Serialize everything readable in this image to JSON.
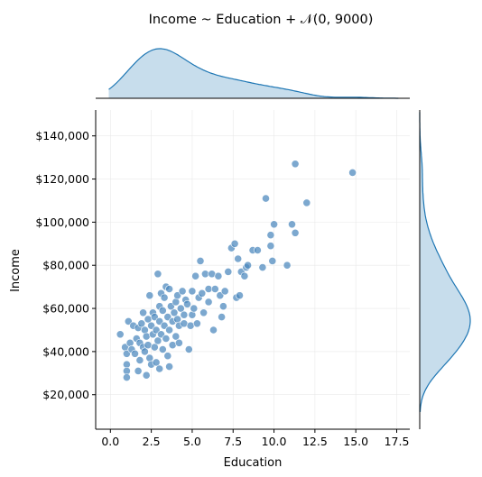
{
  "chart_data": {
    "type": "scatter",
    "title": "Income ~ Education + 𝒩(0, 9000)",
    "xlabel": "Education",
    "ylabel": "Income",
    "xlim": [
      -0.9,
      18.3
    ],
    "ylim": [
      4000,
      152000
    ],
    "xticks": [
      0,
      2.5,
      5,
      7.5,
      10,
      12.5,
      15,
      17.5
    ],
    "xtick_labels": [
      "0.0",
      "2.5",
      "5.0",
      "7.5",
      "10.0",
      "12.5",
      "15.0",
      "17.5"
    ],
    "yticks": [
      20000,
      40000,
      60000,
      80000,
      100000,
      120000,
      140000
    ],
    "ytick_labels": [
      "$20,000",
      "$40,000",
      "$60,000",
      "$80,000",
      "$100,000",
      "$120,000",
      "$140,000"
    ],
    "grid": true,
    "marginals": {
      "x": "kde",
      "y": "kde"
    },
    "colors": {
      "point": "#4a86bd",
      "line": "#1f77b4",
      "fill": "#1f77b4"
    },
    "points": [
      [
        0.6,
        48000
      ],
      [
        0.9,
        42000
      ],
      [
        1.0,
        39000
      ],
      [
        1.0,
        34000
      ],
      [
        1.0,
        31000
      ],
      [
        1.0,
        28000
      ],
      [
        1.1,
        54000
      ],
      [
        1.2,
        44000
      ],
      [
        1.3,
        41000
      ],
      [
        1.4,
        52000
      ],
      [
        1.5,
        39000
      ],
      [
        1.6,
        46000
      ],
      [
        1.7,
        51000
      ],
      [
        1.7,
        31000
      ],
      [
        1.8,
        36000
      ],
      [
        1.8,
        44000
      ],
      [
        1.9,
        53000
      ],
      [
        2.0,
        58000
      ],
      [
        2.0,
        42000
      ],
      [
        2.1,
        50000
      ],
      [
        2.1,
        40000
      ],
      [
        2.2,
        47000
      ],
      [
        2.2,
        29000
      ],
      [
        2.3,
        55000
      ],
      [
        2.3,
        43000
      ],
      [
        2.4,
        37000
      ],
      [
        2.4,
        66000
      ],
      [
        2.5,
        52000
      ],
      [
        2.5,
        34000
      ],
      [
        2.6,
        58000
      ],
      [
        2.6,
        48000
      ],
      [
        2.7,
        42000
      ],
      [
        2.7,
        56000
      ],
      [
        2.8,
        50000
      ],
      [
        2.8,
        35000
      ],
      [
        2.9,
        76000
      ],
      [
        2.9,
        45000
      ],
      [
        3.0,
        61000
      ],
      [
        3.0,
        54000
      ],
      [
        3.0,
        32000
      ],
      [
        3.1,
        67000
      ],
      [
        3.1,
        48000
      ],
      [
        3.2,
        59000
      ],
      [
        3.2,
        41000
      ],
      [
        3.3,
        65000
      ],
      [
        3.3,
        52000
      ],
      [
        3.4,
        70000
      ],
      [
        3.4,
        46000
      ],
      [
        3.5,
        56000
      ],
      [
        3.5,
        38000
      ],
      [
        3.6,
        69000
      ],
      [
        3.6,
        50000
      ],
      [
        3.6,
        33000
      ],
      [
        3.7,
        61000
      ],
      [
        3.8,
        54000
      ],
      [
        3.8,
        43000
      ],
      [
        3.9,
        58000
      ],
      [
        4.0,
        63000
      ],
      [
        4.0,
        47000
      ],
      [
        4.1,
        66000
      ],
      [
        4.1,
        55000
      ],
      [
        4.2,
        52000
      ],
      [
        4.2,
        44000
      ],
      [
        4.3,
        60000
      ],
      [
        4.4,
        68000
      ],
      [
        4.5,
        57000
      ],
      [
        4.5,
        53000
      ],
      [
        4.6,
        64000
      ],
      [
        4.7,
        62000
      ],
      [
        4.8,
        41000
      ],
      [
        4.9,
        52000
      ],
      [
        5.0,
        68000
      ],
      [
        5.0,
        57000
      ],
      [
        5.1,
        60000
      ],
      [
        5.2,
        75000
      ],
      [
        5.3,
        53000
      ],
      [
        5.4,
        65000
      ],
      [
        5.5,
        82000
      ],
      [
        5.6,
        67000
      ],
      [
        5.7,
        58000
      ],
      [
        5.8,
        76000
      ],
      [
        6.0,
        69000
      ],
      [
        6.0,
        63000
      ],
      [
        6.2,
        76000
      ],
      [
        6.3,
        50000
      ],
      [
        6.4,
        69000
      ],
      [
        6.6,
        75000
      ],
      [
        6.7,
        66000
      ],
      [
        6.8,
        56000
      ],
      [
        6.9,
        61000
      ],
      [
        7.0,
        68000
      ],
      [
        7.2,
        77000
      ],
      [
        7.4,
        88000
      ],
      [
        7.6,
        90000
      ],
      [
        7.7,
        65000
      ],
      [
        7.8,
        83000
      ],
      [
        7.9,
        66000
      ],
      [
        8.0,
        77000
      ],
      [
        8.2,
        75000
      ],
      [
        8.3,
        79000
      ],
      [
        8.4,
        80000
      ],
      [
        8.7,
        87000
      ],
      [
        9.0,
        87000
      ],
      [
        9.3,
        79000
      ],
      [
        9.5,
        111000
      ],
      [
        9.8,
        94000
      ],
      [
        9.8,
        89000
      ],
      [
        9.9,
        82000
      ],
      [
        10.0,
        99000
      ],
      [
        10.8,
        80000
      ],
      [
        11.1,
        99000
      ],
      [
        11.3,
        127000
      ],
      [
        11.3,
        95000
      ],
      [
        12.0,
        109000
      ],
      [
        14.8,
        123000
      ]
    ],
    "x_density_peak": 2.7,
    "y_density_peak": 52000
  }
}
